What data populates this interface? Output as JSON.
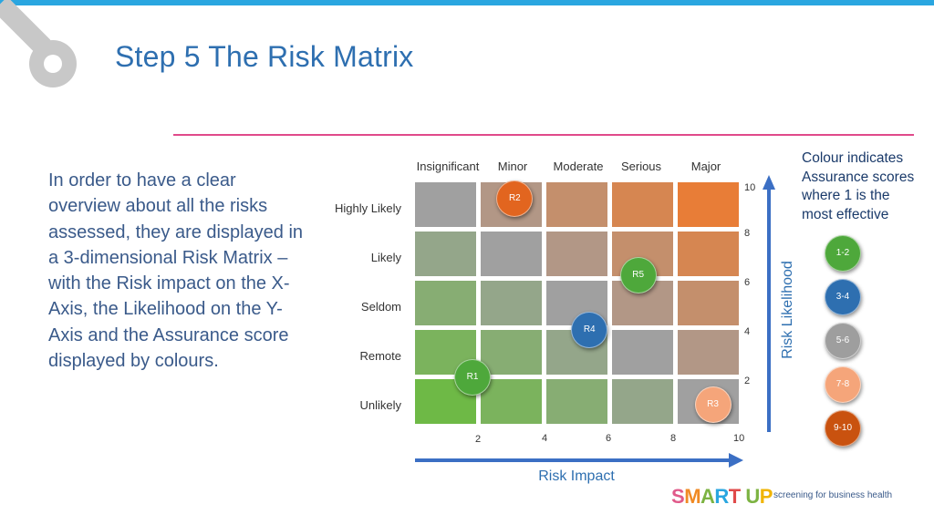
{
  "slide": {
    "title": "Step 5  The Risk Matrix",
    "intro": "In order to have a clear overview about all the risks assessed, they are displayed in a 3-dimensional Risk Matrix – with the Risk impact on the X-Axis, the Likelihood on the Y-Axis and the Assurance score displayed by colours."
  },
  "matrix": {
    "columns": [
      "Insignificant",
      "Minor",
      "Moderate",
      "Serious",
      "Major"
    ],
    "rows": [
      "Highly Likely",
      "Likely",
      "Seldom",
      "Remote",
      "Unlikely"
    ],
    "x_ticks": [
      "2",
      "4",
      "6",
      "8",
      "10"
    ],
    "y_ticks": [
      "10",
      "8",
      "6",
      "4",
      "2"
    ],
    "x_axis_title": "Risk Impact",
    "y_axis_title": "Risk Likelihood",
    "risks": [
      {
        "label": "R2",
        "impact": 3.1,
        "likelihood": 9.3,
        "color": "#e2651f"
      },
      {
        "label": "R5",
        "impact": 6.9,
        "likelihood": 6.2,
        "color": "#4ea83b"
      },
      {
        "label": "R4",
        "impact": 5.4,
        "likelihood": 4.0,
        "color": "#2e6fb0"
      },
      {
        "label": "R1",
        "impact": 1.8,
        "likelihood": 2.1,
        "color": "#4ea83b"
      },
      {
        "label": "R3",
        "impact": 9.2,
        "likelihood": 1.0,
        "color": "#f5a57a"
      }
    ]
  },
  "legend": {
    "note": "Colour indicates Assurance scores where 1 is the most effective",
    "items": [
      {
        "label": "1-2",
        "color": "#4ea83b"
      },
      {
        "label": "3-4",
        "color": "#2e6fb0"
      },
      {
        "label": "5-6",
        "color": "#9e9e9e"
      },
      {
        "label": "7-8",
        "color": "#f5a57a"
      },
      {
        "label": "9-10",
        "color": "#c9520f"
      }
    ]
  },
  "branding": {
    "logo": "SMART UP",
    "tagline": "screening for business health"
  }
}
